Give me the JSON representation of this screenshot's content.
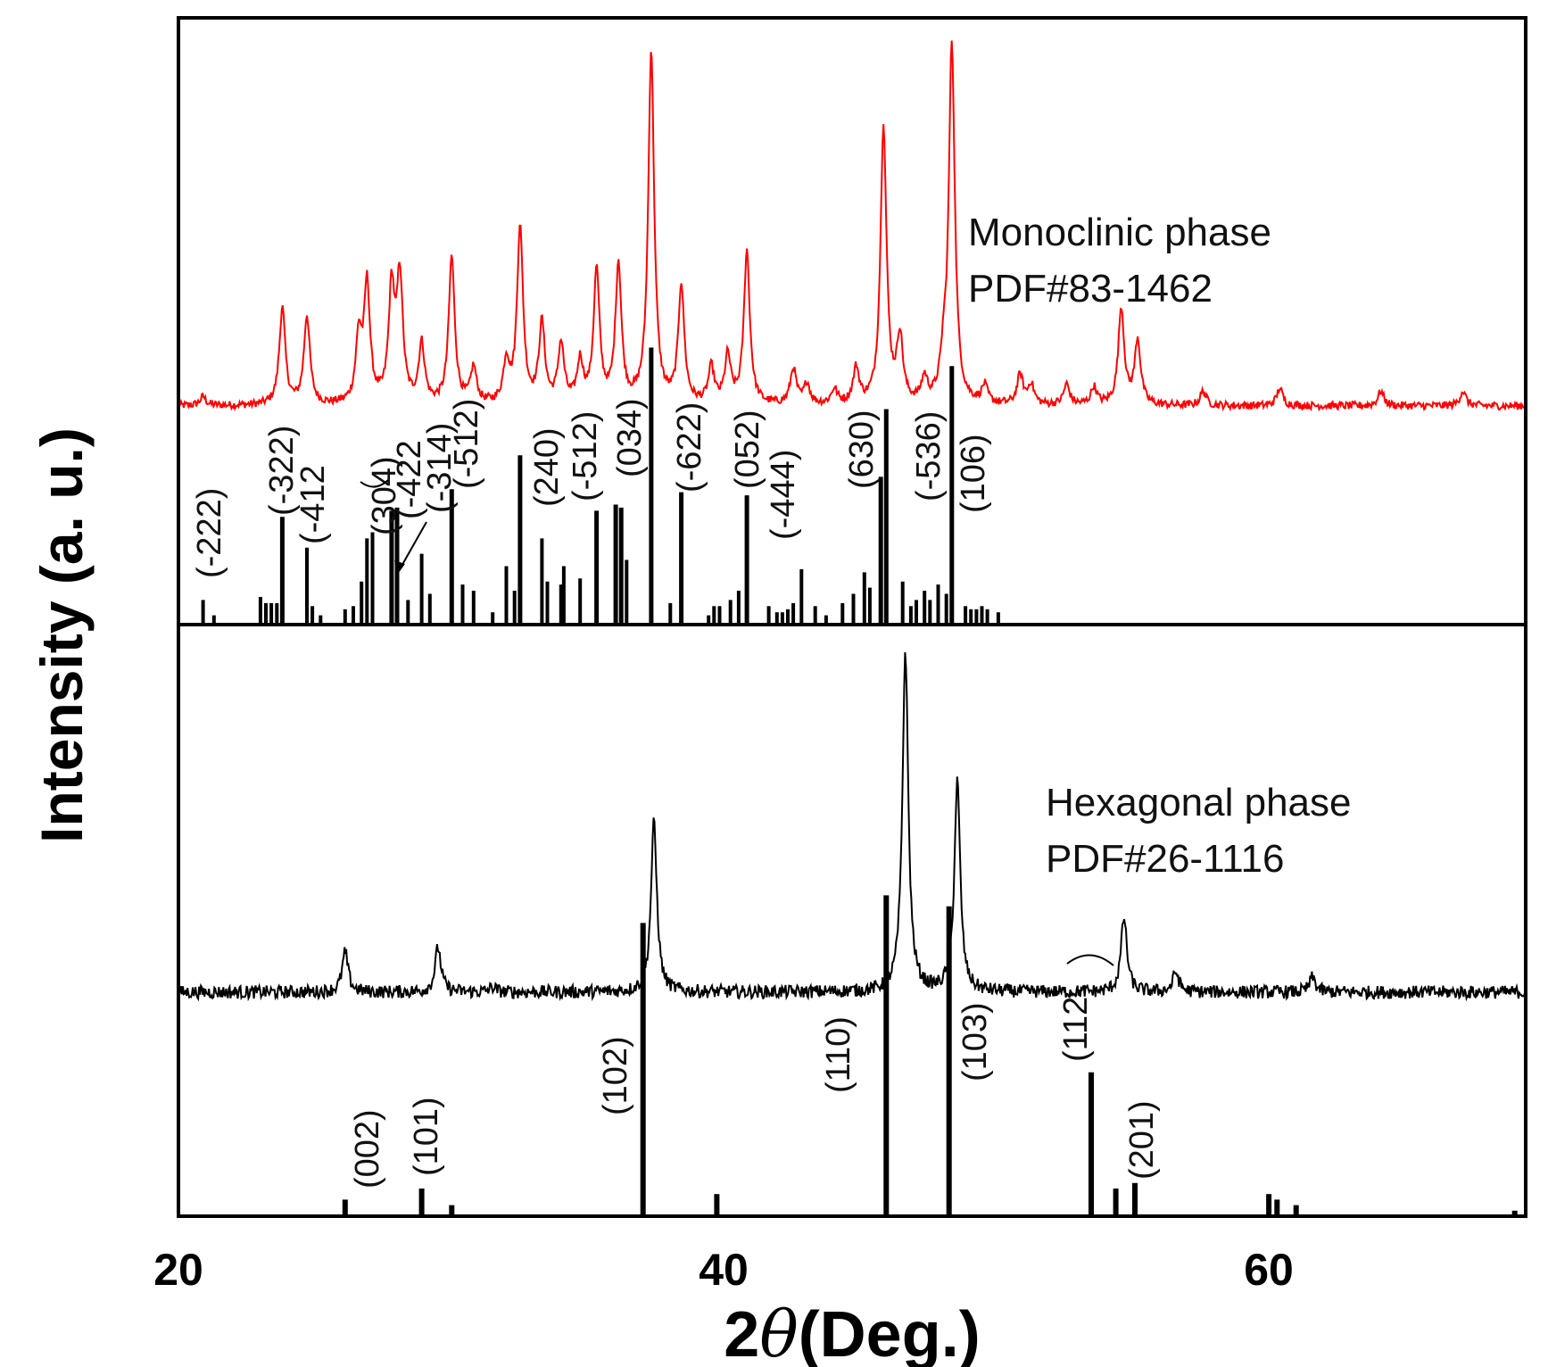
{
  "chart_data": {
    "type": "line",
    "title": "",
    "xlabel_prefix": "2",
    "xlabel_symbol": "θ",
    "xlabel_suffix": "(Deg.)",
    "ylabel": "Intensity (a. u.)",
    "xlim": [
      20,
      69.3
    ],
    "xticks": [
      20,
      40,
      60
    ],
    "panels": [
      {
        "name": "monoclinic",
        "series_name": "Monoclinic XRD pattern",
        "color": "#ff0000",
        "label_line1": "Monoclinic phase",
        "label_line2": "PDF#83-1462",
        "baseline": 0.1,
        "noise": 0.012,
        "peaks": [
          {
            "x": 20.9,
            "h": 0.03
          },
          {
            "x": 23.8,
            "h": 0.33
          },
          {
            "x": 24.7,
            "h": 0.3
          },
          {
            "x": 26.6,
            "h": 0.22
          },
          {
            "x": 26.9,
            "h": 0.4
          },
          {
            "x": 27.8,
            "h": 0.38
          },
          {
            "x": 28.1,
            "h": 0.42
          },
          {
            "x": 28.9,
            "h": 0.2
          },
          {
            "x": 30.0,
            "h": 0.5
          },
          {
            "x": 30.8,
            "h": 0.12
          },
          {
            "x": 32.0,
            "h": 0.14
          },
          {
            "x": 32.5,
            "h": 0.6
          },
          {
            "x": 33.3,
            "h": 0.27
          },
          {
            "x": 34.0,
            "h": 0.2
          },
          {
            "x": 34.7,
            "h": 0.14
          },
          {
            "x": 35.3,
            "h": 0.45
          },
          {
            "x": 36.1,
            "h": 0.47
          },
          {
            "x": 37.3,
            "h": 1.2
          },
          {
            "x": 38.4,
            "h": 0.4
          },
          {
            "x": 39.5,
            "h": 0.12
          },
          {
            "x": 40.1,
            "h": 0.16
          },
          {
            "x": 40.8,
            "h": 0.52
          },
          {
            "x": 42.5,
            "h": 0.12
          },
          {
            "x": 43.0,
            "h": 0.07
          },
          {
            "x": 44.0,
            "h": 0.05
          },
          {
            "x": 44.8,
            "h": 0.12
          },
          {
            "x": 45.8,
            "h": 0.95
          },
          {
            "x": 46.4,
            "h": 0.22
          },
          {
            "x": 47.3,
            "h": 0.08
          },
          {
            "x": 48.0,
            "h": 0.12
          },
          {
            "x": 48.3,
            "h": 1.22
          },
          {
            "x": 49.5,
            "h": 0.06
          },
          {
            "x": 50.8,
            "h": 0.1
          },
          {
            "x": 51.2,
            "h": 0.07
          },
          {
            "x": 52.5,
            "h": 0.07
          },
          {
            "x": 53.5,
            "h": 0.06
          },
          {
            "x": 54.5,
            "h": 0.33
          },
          {
            "x": 55.1,
            "h": 0.22
          },
          {
            "x": 57.5,
            "h": 0.05
          },
          {
            "x": 60.3,
            "h": 0.06
          },
          {
            "x": 64.0,
            "h": 0.05
          },
          {
            "x": 67.0,
            "h": 0.05
          }
        ],
        "reference_sticks": [
          [
            20.9,
            0.08
          ],
          [
            21.3,
            0.03
          ],
          [
            23.0,
            0.09
          ],
          [
            23.2,
            0.07
          ],
          [
            23.4,
            0.07
          ],
          [
            23.6,
            0.07
          ],
          [
            23.8,
            0.35
          ],
          [
            24.7,
            0.25
          ],
          [
            24.9,
            0.06
          ],
          [
            25.2,
            0.03
          ],
          [
            26.1,
            0.05
          ],
          [
            26.4,
            0.06
          ],
          [
            26.7,
            0.14
          ],
          [
            26.9,
            0.28
          ],
          [
            27.1,
            0.3
          ],
          [
            27.8,
            0.37
          ],
          [
            28.0,
            0.38
          ],
          [
            28.4,
            0.08
          ],
          [
            28.9,
            0.23
          ],
          [
            29.2,
            0.1
          ],
          [
            30.0,
            0.44
          ],
          [
            30.4,
            0.13
          ],
          [
            30.8,
            0.11
          ],
          [
            31.5,
            0.04
          ],
          [
            32.0,
            0.19
          ],
          [
            32.3,
            0.11
          ],
          [
            32.5,
            0.55
          ],
          [
            33.3,
            0.28
          ],
          [
            33.5,
            0.14
          ],
          [
            34.0,
            0.13
          ],
          [
            34.1,
            0.19
          ],
          [
            34.7,
            0.15
          ],
          [
            35.3,
            0.37
          ],
          [
            36.0,
            0.39
          ],
          [
            36.2,
            0.38
          ],
          [
            36.4,
            0.21
          ],
          [
            37.3,
            0.9
          ],
          [
            38.0,
            0.07
          ],
          [
            38.4,
            0.43
          ],
          [
            39.4,
            0.03
          ],
          [
            39.6,
            0.06
          ],
          [
            39.8,
            0.06
          ],
          [
            40.2,
            0.08
          ],
          [
            40.5,
            0.11
          ],
          [
            40.8,
            0.42
          ],
          [
            41.6,
            0.06
          ],
          [
            41.9,
            0.04
          ],
          [
            42.1,
            0.04
          ],
          [
            42.3,
            0.05
          ],
          [
            42.5,
            0.07
          ],
          [
            42.8,
            0.18
          ],
          [
            43.3,
            0.06
          ],
          [
            43.7,
            0.03
          ],
          [
            44.3,
            0.07
          ],
          [
            44.7,
            0.1
          ],
          [
            45.1,
            0.17
          ],
          [
            45.3,
            0.12
          ],
          [
            45.7,
            0.48
          ],
          [
            45.9,
            0.7
          ],
          [
            46.5,
            0.14
          ],
          [
            46.8,
            0.06
          ],
          [
            47.0,
            0.08
          ],
          [
            47.3,
            0.11
          ],
          [
            47.5,
            0.08
          ],
          [
            47.8,
            0.13
          ],
          [
            48.1,
            0.1
          ],
          [
            48.3,
            0.84
          ],
          [
            48.8,
            0.06
          ],
          [
            49.0,
            0.05
          ],
          [
            49.2,
            0.05
          ],
          [
            49.4,
            0.06
          ],
          [
            49.6,
            0.05
          ],
          [
            50.0,
            0.04
          ]
        ],
        "hkl_labels": [
          "(-222)",
          "(-322)",
          "(-412",
          "(304)",
          "(-422",
          "(-314)",
          "(-512)",
          "(240)",
          "(-512)",
          "(034)",
          "(-622)",
          "(052)",
          "(-444)",
          "(630)",
          "(-536)",
          "(106)"
        ]
      },
      {
        "name": "hexagonal",
        "series_name": "Hexagonal XRD pattern",
        "color": "#000000",
        "label_line1": "Hexagonal phase",
        "label_line2": "PDF#26-1116",
        "baseline": 0.1,
        "noise": 0.012,
        "peaks": [
          {
            "x": 26.1,
            "h": 0.08
          },
          {
            "x": 29.5,
            "h": 0.09
          },
          {
            "x": 31.5,
            "h": 0.01
          },
          {
            "x": 37.4,
            "h": 0.34
          },
          {
            "x": 46.6,
            "h": 0.68
          },
          {
            "x": 48.5,
            "h": 0.42
          },
          {
            "x": 54.6,
            "h": 0.15
          },
          {
            "x": 56.5,
            "h": 0.04
          },
          {
            "x": 61.5,
            "h": 0.03
          }
        ],
        "reference_sticks": [
          [
            26.1,
            0.03
          ],
          [
            28.9,
            0.05
          ],
          [
            30.0,
            0.02
          ],
          [
            37.0,
            0.53
          ],
          [
            39.7,
            0.04
          ],
          [
            45.9,
            0.58
          ],
          [
            48.2,
            0.56
          ],
          [
            53.4,
            0.26
          ],
          [
            54.3,
            0.05
          ],
          [
            55.0,
            0.06
          ],
          [
            59.9,
            0.04
          ],
          [
            60.2,
            0.03
          ],
          [
            60.9,
            0.02
          ],
          [
            68.9,
            0.01
          ]
        ],
        "hkl_labels": [
          "(002)",
          "(101)",
          "(102)",
          "(110)",
          "(103)",
          "(112",
          "(201)"
        ]
      }
    ]
  }
}
